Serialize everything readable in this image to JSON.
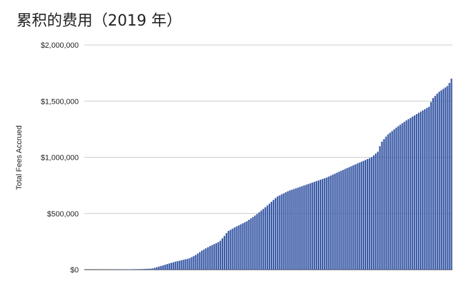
{
  "chart_data": {
    "type": "bar",
    "title": "累积的费用（2019 年）",
    "ylabel": "Total Fees Accrued",
    "xlabel": "",
    "ylim": [
      0,
      2000000
    ],
    "yticks": [
      "$0",
      "$500,000",
      "$1,000,000",
      "$1,500,000",
      "$2,000,000"
    ],
    "grid": true,
    "bar_color": "#3b5ba7",
    "n_bars": 180,
    "anchors": [
      [
        1,
        0
      ],
      [
        24,
        2000
      ],
      [
        36,
        5000
      ],
      [
        43,
        10000
      ],
      [
        50,
        40000
      ],
      [
        57,
        70000
      ],
      [
        66,
        100000
      ],
      [
        70,
        130000
      ],
      [
        74,
        170000
      ],
      [
        79,
        210000
      ],
      [
        85,
        250000
      ],
      [
        88,
        300000
      ],
      [
        90,
        340000
      ],
      [
        95,
        380000
      ],
      [
        102,
        430000
      ],
      [
        108,
        490000
      ],
      [
        114,
        560000
      ],
      [
        121,
        650000
      ],
      [
        128,
        700000
      ],
      [
        142,
        770000
      ],
      [
        152,
        820000
      ],
      [
        161,
        880000
      ],
      [
        172,
        950000
      ],
      [
        180,
        1000000
      ],
      [
        184,
        1050000
      ],
      [
        186,
        1130000
      ],
      [
        190,
        1200000
      ],
      [
        196,
        1270000
      ],
      [
        202,
        1330000
      ],
      [
        210,
        1400000
      ],
      [
        216,
        1450000
      ],
      [
        218,
        1520000
      ],
      [
        222,
        1580000
      ],
      [
        228,
        1640000
      ],
      [
        230,
        1700000
      ]
    ]
  }
}
